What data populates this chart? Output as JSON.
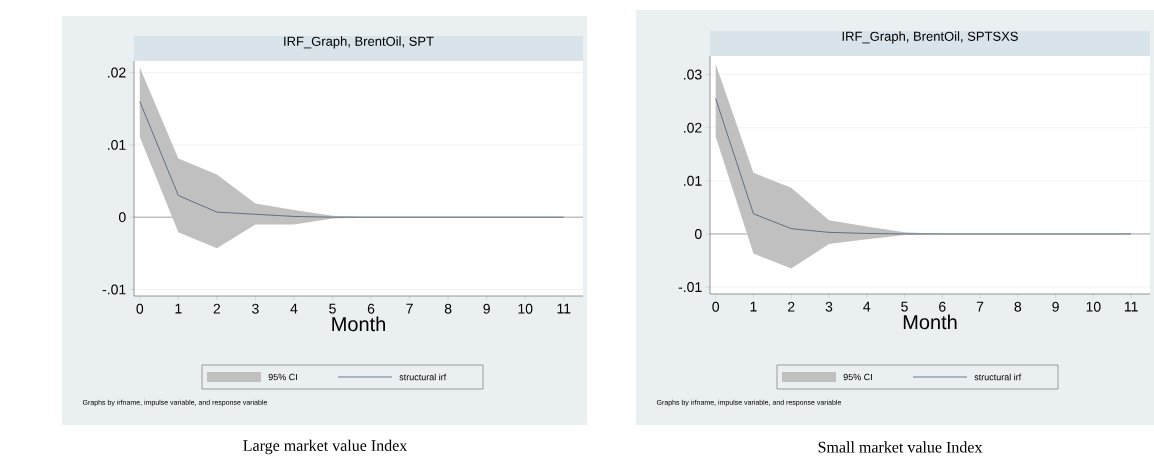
{
  "chart_data": [
    {
      "type": "line",
      "title": "IRF_Graph, BrentOil, SPT",
      "xlabel": "Month",
      "x": [
        0,
        1,
        2,
        3,
        4,
        5,
        6,
        7,
        8,
        9,
        10,
        11
      ],
      "series": [
        {
          "name": "structural irf",
          "color": "#4a5a74",
          "values": [
            0.016,
            0.003,
            0.0007,
            0.0004,
            0.0001,
            0,
            0,
            0,
            0,
            0,
            0,
            0
          ],
          "lower": [
            0.0111,
            -0.0021,
            -0.0043,
            -0.001,
            -0.001,
            -0.0002,
            0,
            0,
            0,
            0,
            0,
            0
          ],
          "upper": [
            0.0207,
            0.0081,
            0.0059,
            0.0019,
            0.001,
            0.0002,
            0,
            0,
            0,
            0,
            0,
            0
          ]
        }
      ],
      "xlim": [
        -0.15,
        11.5
      ],
      "ylim": [
        -0.0109,
        0.0216
      ],
      "xticks": [
        0,
        1,
        2,
        3,
        4,
        5,
        6,
        7,
        8,
        9,
        10,
        11
      ],
      "yticks": [
        {
          "value": -0.01,
          "label": "-.01"
        },
        0,
        {
          "value": 0.01,
          "label": ".01"
        },
        {
          "value": 0.02,
          "label": ".02"
        }
      ],
      "ref_lines": [
        {
          "axis": "y",
          "value": 0,
          "color": "#333333"
        }
      ],
      "grid": "y",
      "legend": "bottom",
      "annotations": [
        "Graphs by irfname, impulse variable, and response variable",
        "Large market value Index",
        "95% CI"
      ]
    },
    {
      "type": "line",
      "title": "IRF_Graph, BrentOil, SPTSXS",
      "xlabel": "Month",
      "x": [
        0,
        1,
        2,
        3,
        4,
        5,
        6,
        7,
        8,
        9,
        10,
        11
      ],
      "series": [
        {
          "name": "structural irf",
          "color": "#4a5a74",
          "values": [
            0.0255,
            0.0038,
            0.001,
            0.0003,
            0.0001,
            0,
            0,
            0,
            0,
            0,
            0,
            0
          ],
          "lower": [
            0.0183,
            -0.0037,
            -0.0065,
            -0.0019,
            -0.001,
            -0.0002,
            0,
            0,
            0,
            0,
            0,
            0
          ],
          "upper": [
            0.032,
            0.0115,
            0.0087,
            0.0026,
            0.0014,
            0.0003,
            0,
            0,
            0,
            0,
            0,
            0
          ]
        }
      ],
      "xlim": [
        -0.15,
        11.5
      ],
      "ylim": [
        -0.0113,
        0.0335
      ],
      "xticks": [
        0,
        1,
        2,
        3,
        4,
        5,
        6,
        7,
        8,
        9,
        10,
        11
      ],
      "yticks": [
        {
          "value": -0.01,
          "label": "-.01"
        },
        0,
        {
          "value": 0.01,
          "label": ".01"
        },
        {
          "value": 0.02,
          "label": ".02"
        },
        {
          "value": 0.03,
          "label": ".03"
        }
      ],
      "ref_lines": [
        {
          "axis": "y",
          "value": 0,
          "color": "#333333"
        }
      ],
      "grid": "y",
      "legend": "bottom",
      "annotations": [
        "Graphs by irfname, impulse variable, and response variable",
        "Small market value Index",
        "95% CI"
      ]
    }
  ]
}
